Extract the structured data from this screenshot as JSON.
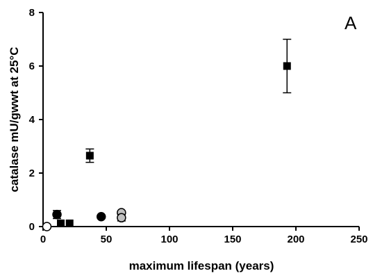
{
  "chart_data": {
    "type": "scatter",
    "panel_label": "A",
    "xlabel": "maximum lifespan (years)",
    "ylabel": "catalase mU/gwwt at 25°C",
    "xlim": [
      0,
      250
    ],
    "ylim": [
      0,
      8
    ],
    "x_ticks": [
      0,
      50,
      100,
      150,
      200,
      250
    ],
    "y_ticks": [
      0,
      2,
      4,
      6,
      8
    ],
    "points": [
      {
        "x": 3,
        "y": 0.0,
        "marker": "circle",
        "fill": "#ffffff"
      },
      {
        "x": 11,
        "y": 0.45,
        "marker": "circle",
        "fill": "#000000",
        "err": 0.15
      },
      {
        "x": 14,
        "y": 0.12,
        "marker": "square",
        "fill": "#000000"
      },
      {
        "x": 21,
        "y": 0.12,
        "marker": "square",
        "fill": "#000000"
      },
      {
        "x": 37,
        "y": 2.65,
        "marker": "square",
        "fill": "#000000",
        "err": 0.25
      },
      {
        "x": 46,
        "y": 0.37,
        "marker": "circle",
        "fill": "#000000"
      },
      {
        "x": 62,
        "y": 0.52,
        "marker": "circle",
        "fill": "#c0c0c0"
      },
      {
        "x": 62,
        "y": 0.33,
        "marker": "circle",
        "fill": "#c0c0c0",
        "err": 0.12
      },
      {
        "x": 193,
        "y": 6.0,
        "marker": "square",
        "fill": "#000000",
        "err": 1.0
      }
    ]
  }
}
